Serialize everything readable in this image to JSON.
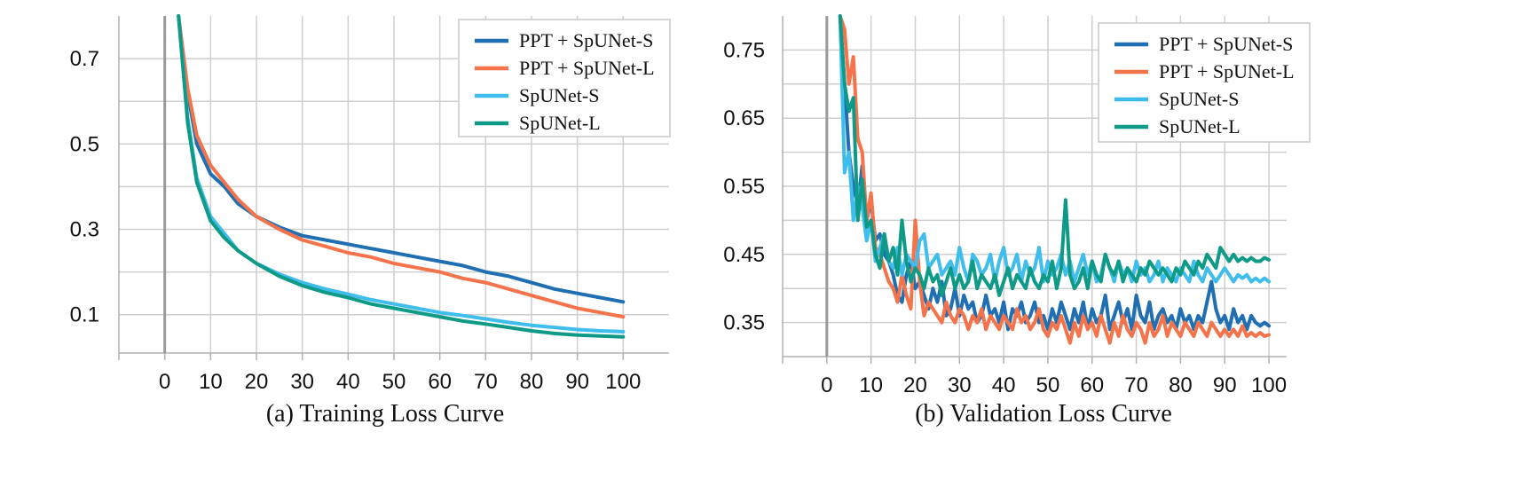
{
  "colors": {
    "ppt_s": "#1f6fb2",
    "ppt_l": "#f4734a",
    "spunet_s": "#3fbdec",
    "spunet_l": "#0f9a87",
    "grid": "#cfcfcf",
    "zero_line": "#9a9a9a"
  },
  "chart_data": [
    {
      "type": "line",
      "title": "(a) Training Loss Curve",
      "xlabel": "",
      "ylabel": "",
      "xlim": [
        -10,
        110
      ],
      "ylim": [
        0.01,
        0.8
      ],
      "x_ticks": [
        0,
        10,
        20,
        30,
        40,
        50,
        60,
        70,
        80,
        90,
        100
      ],
      "x_tick_labels": [
        "0",
        "10",
        "20",
        "30",
        "40",
        "50",
        "60",
        "70",
        "80",
        "90",
        "100"
      ],
      "y_ticks": [
        0.1,
        0.3,
        0.5,
        0.7
      ],
      "y_tick_labels": [
        "0.1",
        "0.3",
        "0.5",
        "0.7"
      ],
      "y_minor_ticks": [
        0.2,
        0.4,
        0.6
      ],
      "grid": true,
      "legend_position": "top-right",
      "legend": [
        "PPT + SpUNet-S",
        "PPT + SpUNet-L",
        "SpUNet-S",
        "SpUNet-L"
      ],
      "x": [
        3,
        5,
        7,
        10,
        13,
        16,
        20,
        25,
        30,
        35,
        40,
        45,
        50,
        55,
        60,
        65,
        70,
        75,
        80,
        85,
        90,
        95,
        100
      ],
      "series": [
        {
          "name": "PPT + SpUNet-S",
          "color_key": "ppt_s",
          "values": [
            0.8,
            0.62,
            0.5,
            0.43,
            0.4,
            0.36,
            0.33,
            0.305,
            0.285,
            0.275,
            0.265,
            0.255,
            0.245,
            0.235,
            0.225,
            0.215,
            0.2,
            0.19,
            0.175,
            0.16,
            0.15,
            0.14,
            0.13
          ]
        },
        {
          "name": "PPT + SpUNet-L",
          "color_key": "ppt_l",
          "values": [
            0.8,
            0.63,
            0.52,
            0.45,
            0.41,
            0.37,
            0.33,
            0.3,
            0.275,
            0.26,
            0.245,
            0.235,
            0.22,
            0.21,
            0.2,
            0.185,
            0.175,
            0.16,
            0.145,
            0.13,
            0.115,
            0.105,
            0.095
          ]
        },
        {
          "name": "SpUNet-S",
          "color_key": "spunet_s",
          "values": [
            0.8,
            0.56,
            0.42,
            0.33,
            0.29,
            0.25,
            0.22,
            0.195,
            0.175,
            0.16,
            0.148,
            0.135,
            0.125,
            0.115,
            0.105,
            0.098,
            0.09,
            0.082,
            0.075,
            0.07,
            0.065,
            0.062,
            0.06
          ]
        },
        {
          "name": "SpUNet-L",
          "color_key": "spunet_l",
          "values": [
            0.8,
            0.55,
            0.41,
            0.32,
            0.28,
            0.25,
            0.22,
            0.19,
            0.168,
            0.152,
            0.14,
            0.125,
            0.115,
            0.105,
            0.095,
            0.085,
            0.078,
            0.07,
            0.062,
            0.056,
            0.052,
            0.05,
            0.048
          ]
        }
      ]
    },
    {
      "type": "line",
      "title": "(b) Validation Loss Curve",
      "xlabel": "",
      "ylabel": "",
      "xlim": [
        -10,
        104
      ],
      "ylim": [
        0.3,
        0.8
      ],
      "x_ticks": [
        0,
        10,
        20,
        30,
        40,
        50,
        60,
        70,
        80,
        90,
        100
      ],
      "x_tick_labels": [
        "0",
        "10",
        "20",
        "30",
        "40",
        "50",
        "60",
        "70",
        "80",
        "90",
        "100"
      ],
      "y_ticks": [
        0.35,
        0.45,
        0.55,
        0.65,
        0.75
      ],
      "y_tick_labels": [
        "0.35",
        "0.45",
        "0.55",
        "0.65",
        "0.75"
      ],
      "y_minor_ticks": [
        0.4,
        0.5,
        0.6,
        0.7
      ],
      "grid": true,
      "legend_position": "top-right",
      "legend": [
        "PPT + SpUNet-S",
        "PPT + SpUNet-L",
        "SpUNet-S",
        "SpUNet-L"
      ],
      "x": [
        3,
        4,
        5,
        6,
        7,
        8,
        9,
        10,
        11,
        12,
        13,
        14,
        15,
        16,
        17,
        18,
        19,
        20,
        21,
        22,
        23,
        24,
        25,
        26,
        27,
        28,
        29,
        30,
        31,
        32,
        33,
        34,
        35,
        36,
        37,
        38,
        39,
        40,
        41,
        42,
        43,
        44,
        45,
        46,
        47,
        48,
        49,
        50,
        51,
        52,
        53,
        54,
        55,
        56,
        57,
        58,
        59,
        60,
        61,
        62,
        63,
        64,
        65,
        66,
        67,
        68,
        69,
        70,
        71,
        72,
        73,
        74,
        75,
        76,
        77,
        78,
        79,
        80,
        81,
        82,
        83,
        84,
        85,
        86,
        87,
        88,
        89,
        90,
        91,
        92,
        93,
        94,
        95,
        96,
        97,
        98,
        99,
        100
      ],
      "series": [
        {
          "name": "PPT + SpUNet-S",
          "color_key": "ppt_s",
          "values": [
            0.8,
            0.7,
            0.6,
            0.55,
            0.52,
            0.58,
            0.5,
            0.53,
            0.47,
            0.48,
            0.45,
            0.44,
            0.42,
            0.39,
            0.38,
            0.42,
            0.44,
            0.4,
            0.41,
            0.39,
            0.37,
            0.4,
            0.38,
            0.41,
            0.36,
            0.37,
            0.4,
            0.36,
            0.39,
            0.37,
            0.38,
            0.35,
            0.36,
            0.39,
            0.36,
            0.37,
            0.35,
            0.38,
            0.34,
            0.37,
            0.36,
            0.38,
            0.35,
            0.36,
            0.38,
            0.35,
            0.36,
            0.34,
            0.37,
            0.35,
            0.38,
            0.36,
            0.34,
            0.37,
            0.35,
            0.38,
            0.34,
            0.37,
            0.35,
            0.36,
            0.39,
            0.34,
            0.36,
            0.38,
            0.35,
            0.37,
            0.34,
            0.39,
            0.36,
            0.35,
            0.38,
            0.34,
            0.36,
            0.37,
            0.35,
            0.36,
            0.34,
            0.37,
            0.35,
            0.36,
            0.34,
            0.36,
            0.35,
            0.38,
            0.41,
            0.37,
            0.35,
            0.36,
            0.34,
            0.37,
            0.35,
            0.36,
            0.34,
            0.36,
            0.35,
            0.345,
            0.35,
            0.345
          ]
        },
        {
          "name": "PPT + SpUNet-L",
          "color_key": "ppt_l",
          "values": [
            0.8,
            0.78,
            0.7,
            0.74,
            0.62,
            0.6,
            0.5,
            0.54,
            0.46,
            0.45,
            0.43,
            0.41,
            0.4,
            0.38,
            0.42,
            0.39,
            0.37,
            0.5,
            0.41,
            0.36,
            0.38,
            0.37,
            0.36,
            0.35,
            0.38,
            0.36,
            0.35,
            0.37,
            0.36,
            0.34,
            0.36,
            0.35,
            0.37,
            0.34,
            0.36,
            0.35,
            0.34,
            0.36,
            0.35,
            0.34,
            0.37,
            0.35,
            0.36,
            0.34,
            0.35,
            0.37,
            0.34,
            0.33,
            0.35,
            0.34,
            0.36,
            0.34,
            0.32,
            0.35,
            0.33,
            0.36,
            0.34,
            0.35,
            0.33,
            0.36,
            0.34,
            0.32,
            0.35,
            0.33,
            0.36,
            0.34,
            0.33,
            0.35,
            0.34,
            0.32,
            0.35,
            0.33,
            0.34,
            0.36,
            0.33,
            0.35,
            0.34,
            0.33,
            0.35,
            0.34,
            0.33,
            0.35,
            0.34,
            0.33,
            0.35,
            0.34,
            0.33,
            0.34,
            0.33,
            0.34,
            0.33,
            0.345,
            0.33,
            0.335,
            0.33,
            0.335,
            0.33,
            0.332
          ]
        },
        {
          "name": "SpUNet-S",
          "color_key": "spunet_s",
          "values": [
            0.8,
            0.57,
            0.6,
            0.5,
            0.55,
            0.52,
            0.47,
            0.5,
            0.44,
            0.46,
            0.48,
            0.44,
            0.43,
            0.46,
            0.42,
            0.45,
            0.44,
            0.43,
            0.47,
            0.48,
            0.43,
            0.44,
            0.45,
            0.42,
            0.43,
            0.44,
            0.42,
            0.46,
            0.43,
            0.41,
            0.45,
            0.44,
            0.42,
            0.43,
            0.45,
            0.41,
            0.44,
            0.46,
            0.42,
            0.43,
            0.45,
            0.41,
            0.44,
            0.42,
            0.43,
            0.46,
            0.41,
            0.44,
            0.42,
            0.43,
            0.45,
            0.42,
            0.44,
            0.41,
            0.43,
            0.45,
            0.42,
            0.44,
            0.41,
            0.42,
            0.45,
            0.43,
            0.41,
            0.44,
            0.42,
            0.43,
            0.41,
            0.44,
            0.42,
            0.43,
            0.41,
            0.42,
            0.44,
            0.41,
            0.43,
            0.42,
            0.41,
            0.43,
            0.42,
            0.41,
            0.44,
            0.42,
            0.41,
            0.43,
            0.42,
            0.41,
            0.42,
            0.43,
            0.42,
            0.41,
            0.42,
            0.415,
            0.42,
            0.41,
            0.415,
            0.41,
            0.415,
            0.41
          ]
        },
        {
          "name": "SpUNet-L",
          "color_key": "spunet_l",
          "values": [
            0.8,
            0.7,
            0.66,
            0.68,
            0.5,
            0.56,
            0.49,
            0.5,
            0.45,
            0.43,
            0.48,
            0.44,
            0.46,
            0.42,
            0.5,
            0.44,
            0.41,
            0.43,
            0.42,
            0.4,
            0.43,
            0.41,
            0.42,
            0.39,
            0.41,
            0.43,
            0.4,
            0.42,
            0.4,
            0.41,
            0.44,
            0.4,
            0.42,
            0.41,
            0.4,
            0.42,
            0.39,
            0.41,
            0.43,
            0.4,
            0.42,
            0.41,
            0.4,
            0.43,
            0.41,
            0.4,
            0.42,
            0.41,
            0.44,
            0.4,
            0.43,
            0.53,
            0.42,
            0.4,
            0.41,
            0.43,
            0.4,
            0.44,
            0.42,
            0.41,
            0.45,
            0.43,
            0.42,
            0.44,
            0.41,
            0.43,
            0.42,
            0.41,
            0.43,
            0.42,
            0.44,
            0.43,
            0.42,
            0.43,
            0.42,
            0.41,
            0.43,
            0.42,
            0.44,
            0.43,
            0.42,
            0.44,
            0.43,
            0.45,
            0.44,
            0.43,
            0.46,
            0.45,
            0.44,
            0.45,
            0.44,
            0.445,
            0.44,
            0.445,
            0.44,
            0.44,
            0.445,
            0.442
          ]
        }
      ]
    }
  ]
}
